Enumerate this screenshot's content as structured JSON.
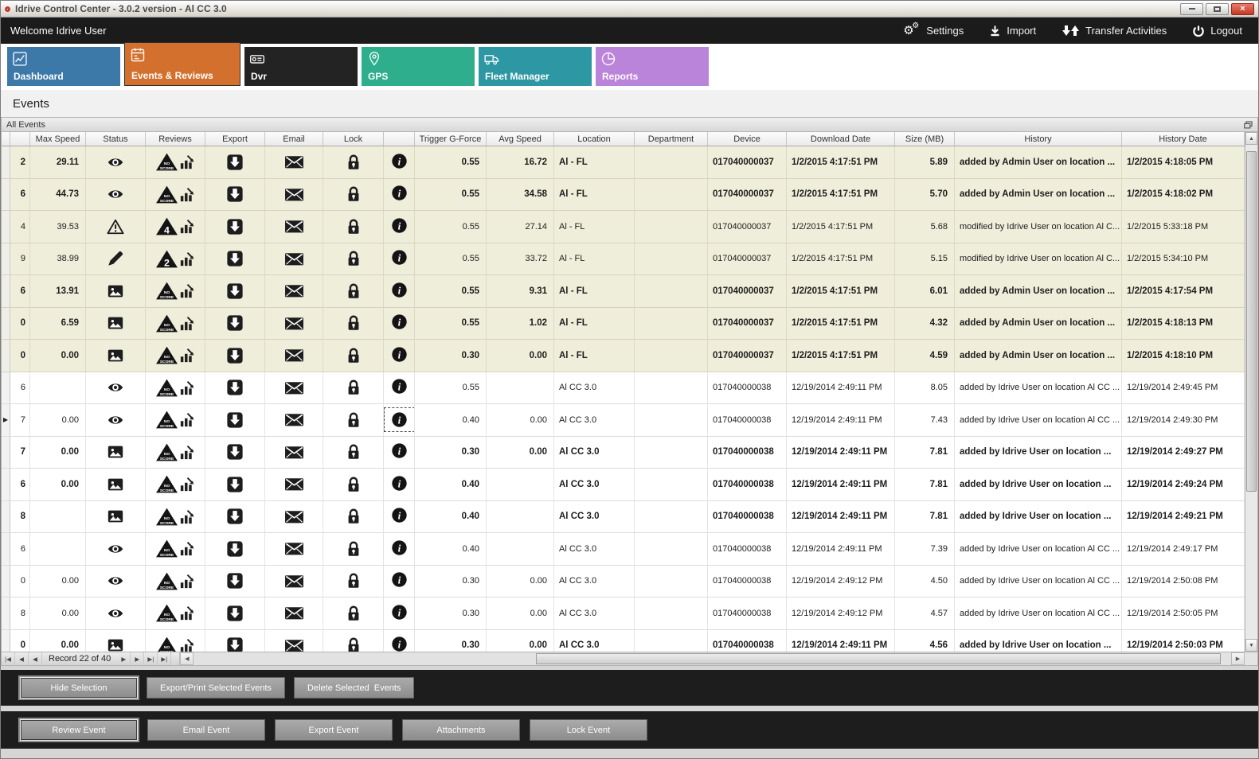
{
  "window": {
    "title": "Idrive Control Center - 3.0.2 version - Al CC 3.0",
    "welcome": "Welcome Idrive User",
    "controls": {
      "minimize": "minimize",
      "maximize": "maximize",
      "close": "close"
    }
  },
  "topbar": {
    "items": [
      {
        "label": "Settings",
        "icon": "gears-icon"
      },
      {
        "label": "Import",
        "icon": "import-arrow-icon"
      },
      {
        "label": "Transfer Activities",
        "icon": "transfer-arrows-icon"
      },
      {
        "label": "Logout",
        "icon": "power-icon"
      }
    ]
  },
  "tabs": [
    {
      "label": "Dashboard",
      "color": "#3c79a8",
      "icon": "line-chart-icon",
      "active": false
    },
    {
      "label": "Events & Reviews",
      "color": "#d4702e",
      "icon": "events-list-icon",
      "active": true
    },
    {
      "label": "Dvr",
      "color": "#232323",
      "icon": "dvr-camera-icon",
      "active": false
    },
    {
      "label": "GPS",
      "color": "#2eae8d",
      "icon": "map-pin-icon",
      "active": false
    },
    {
      "label": "Fleet Manager",
      "color": "#2d97a3",
      "icon": "truck-icon",
      "active": false
    },
    {
      "label": "Reports",
      "color": "#ba84da",
      "icon": "pie-chart-icon",
      "active": false
    }
  ],
  "page_title": "Events",
  "panel_title": "All Events",
  "grid": {
    "columns": [
      "",
      "",
      "Max Speed",
      "Status",
      "Reviews",
      "Export",
      "Email",
      "Lock",
      "",
      "Trigger G-Force",
      "Avg Speed",
      "Location",
      "Department",
      "Device",
      "Download Date",
      "Size (MB)",
      "History",
      "History Date"
    ],
    "rows": [
      {
        "edge": "2",
        "max_speed": "29.11",
        "status": "eye",
        "review": "NO SCORE",
        "trigger": "0.55",
        "avg_speed": "16.72",
        "location": "Al - FL",
        "department": "",
        "device": "017040000037",
        "download_date": "1/2/2015 4:17:51 PM",
        "size": "5.89",
        "history": "added by Admin User on location ...",
        "history_date": "1/2/2015 4:18:05 PM",
        "bold": true,
        "tint": "beige",
        "current": false,
        "focus_info": false
      },
      {
        "edge": "6",
        "max_speed": "44.73",
        "status": "eye",
        "review": "NO SCORE",
        "trigger": "0.55",
        "avg_speed": "34.58",
        "location": "Al - FL",
        "department": "",
        "device": "017040000037",
        "download_date": "1/2/2015 4:17:51 PM",
        "size": "5.70",
        "history": "added by Admin User on location ...",
        "history_date": "1/2/2015 4:18:02 PM",
        "bold": true,
        "tint": "beige",
        "current": false,
        "focus_info": false
      },
      {
        "edge": "4",
        "max_speed": "39.53",
        "status": "warning",
        "review": "4",
        "trigger": "0.55",
        "avg_speed": "27.14",
        "location": "Al - FL",
        "department": "",
        "device": "017040000037",
        "download_date": "1/2/2015 4:17:51 PM",
        "size": "5.68",
        "history": "modified by Idrive User on location Al C...",
        "history_date": "1/2/2015 5:33:18 PM",
        "bold": false,
        "tint": "beige",
        "current": false,
        "focus_info": false
      },
      {
        "edge": "9",
        "max_speed": "38.99",
        "status": "pencil",
        "review": "2",
        "trigger": "0.55",
        "avg_speed": "33.72",
        "location": "Al - FL",
        "department": "",
        "device": "017040000037",
        "download_date": "1/2/2015 4:17:51 PM",
        "size": "5.15",
        "history": "modified by Idrive User on location Al C...",
        "history_date": "1/2/2015 5:34:10 PM",
        "bold": false,
        "tint": "beige",
        "current": false,
        "focus_info": false
      },
      {
        "edge": "6",
        "max_speed": "13.91",
        "status": "image",
        "review": "NO SCORE",
        "trigger": "0.55",
        "avg_speed": "9.31",
        "location": "Al - FL",
        "department": "",
        "device": "017040000037",
        "download_date": "1/2/2015 4:17:51 PM",
        "size": "6.01",
        "history": "added by Admin User on location ...",
        "history_date": "1/2/2015 4:17:54 PM",
        "bold": true,
        "tint": "beige",
        "current": false,
        "focus_info": false
      },
      {
        "edge": "0",
        "max_speed": "6.59",
        "status": "image",
        "review": "NO SCORE",
        "trigger": "0.55",
        "avg_speed": "1.02",
        "location": "Al - FL",
        "department": "",
        "device": "017040000037",
        "download_date": "1/2/2015 4:17:51 PM",
        "size": "4.32",
        "history": "added by Admin User on location ...",
        "history_date": "1/2/2015 4:18:13 PM",
        "bold": true,
        "tint": "beige",
        "current": false,
        "focus_info": false
      },
      {
        "edge": "0",
        "max_speed": "0.00",
        "status": "image",
        "review": "NO SCORE",
        "trigger": "0.30",
        "avg_speed": "0.00",
        "location": "Al - FL",
        "department": "",
        "device": "017040000037",
        "download_date": "1/2/2015 4:17:51 PM",
        "size": "4.59",
        "history": "added by Admin User on location ...",
        "history_date": "1/2/2015 4:18:10 PM",
        "bold": true,
        "tint": "beige",
        "current": false,
        "focus_info": false
      },
      {
        "edge": "6",
        "max_speed": "",
        "status": "eye",
        "review": "NO SCORE",
        "trigger": "0.55",
        "avg_speed": "",
        "location": "Al CC 3.0",
        "department": "",
        "device": "017040000038",
        "download_date": "12/19/2014 2:49:11 PM",
        "size": "8.05",
        "history": "added by Idrive User on location Al CC ...",
        "history_date": "12/19/2014 2:49:45 PM",
        "bold": false,
        "tint": "white",
        "current": false,
        "focus_info": false
      },
      {
        "edge": "7",
        "max_speed": "0.00",
        "status": "eye",
        "review": "NO SCORE",
        "trigger": "0.40",
        "avg_speed": "0.00",
        "location": "Al CC 3.0",
        "department": "",
        "device": "017040000038",
        "download_date": "12/19/2014 2:49:11 PM",
        "size": "7.43",
        "history": "added by Idrive User on location Al CC ...",
        "history_date": "12/19/2014 2:49:30 PM",
        "bold": false,
        "tint": "white",
        "current": true,
        "focus_info": true
      },
      {
        "edge": "7",
        "max_speed": "0.00",
        "status": "image",
        "review": "NO SCORE",
        "trigger": "0.30",
        "avg_speed": "0.00",
        "location": "Al CC 3.0",
        "department": "",
        "device": "017040000038",
        "download_date": "12/19/2014 2:49:11 PM",
        "size": "7.81",
        "history": "added by Idrive User on location ...",
        "history_date": "12/19/2014 2:49:27 PM",
        "bold": true,
        "tint": "white",
        "current": false,
        "focus_info": false
      },
      {
        "edge": "6",
        "max_speed": "0.00",
        "status": "image",
        "review": "NO SCORE",
        "trigger": "0.40",
        "avg_speed": "",
        "location": "Al CC 3.0",
        "department": "",
        "device": "017040000038",
        "download_date": "12/19/2014 2:49:11 PM",
        "size": "7.81",
        "history": "added by Idrive User on location ...",
        "history_date": "12/19/2014 2:49:24 PM",
        "bold": true,
        "tint": "white",
        "current": false,
        "focus_info": false
      },
      {
        "edge": "8",
        "max_speed": "",
        "status": "image",
        "review": "NO SCORE",
        "trigger": "0.40",
        "avg_speed": "",
        "location": "Al CC 3.0",
        "department": "",
        "device": "017040000038",
        "download_date": "12/19/2014 2:49:11 PM",
        "size": "7.81",
        "history": "added by Idrive User on location ...",
        "history_date": "12/19/2014 2:49:21 PM",
        "bold": true,
        "tint": "white",
        "current": false,
        "focus_info": false
      },
      {
        "edge": "6",
        "max_speed": "",
        "status": "eye",
        "review": "NO SCORE",
        "trigger": "0.40",
        "avg_speed": "",
        "location": "Al CC 3.0",
        "department": "",
        "device": "017040000038",
        "download_date": "12/19/2014 2:49:11 PM",
        "size": "7.39",
        "history": "added by Idrive User on location Al CC ...",
        "history_date": "12/19/2014 2:49:17 PM",
        "bold": false,
        "tint": "white",
        "current": false,
        "focus_info": false
      },
      {
        "edge": "0",
        "max_speed": "0.00",
        "status": "eye",
        "review": "NO SCORE",
        "trigger": "0.30",
        "avg_speed": "0.00",
        "location": "Al CC 3.0",
        "department": "",
        "device": "017040000038",
        "download_date": "12/19/2014 2:49:12 PM",
        "size": "4.50",
        "history": "added by Idrive User on location Al CC ...",
        "history_date": "12/19/2014 2:50:08 PM",
        "bold": false,
        "tint": "white",
        "current": false,
        "focus_info": false
      },
      {
        "edge": "8",
        "max_speed": "0.00",
        "status": "eye",
        "review": "NO SCORE",
        "trigger": "0.30",
        "avg_speed": "0.00",
        "location": "Al CC 3.0",
        "department": "",
        "device": "017040000038",
        "download_date": "12/19/2014 2:49:12 PM",
        "size": "4.57",
        "history": "added by Idrive User on location Al CC ...",
        "history_date": "12/19/2014 2:50:05 PM",
        "bold": false,
        "tint": "white",
        "current": false,
        "focus_info": false
      },
      {
        "edge": "0",
        "max_speed": "0.00",
        "status": "image",
        "review": "NO SCORE",
        "trigger": "0.30",
        "avg_speed": "0.00",
        "location": "Al CC 3.0",
        "department": "",
        "device": "017040000038",
        "download_date": "12/19/2014 2:49:11 PM",
        "size": "4.56",
        "history": "added by Idrive User on location ...",
        "history_date": "12/19/2014 2:50:03 PM",
        "bold": true,
        "tint": "white",
        "current": false,
        "focus_info": false
      }
    ]
  },
  "pager": {
    "record_text": "Record 22 of 40",
    "nav_left": [
      "|◀",
      "◀",
      "◀"
    ],
    "nav_right": [
      "▶",
      "▶",
      "▶|",
      "▶|"
    ]
  },
  "action_bar1": [
    "Hide Selection",
    "Export/Print Selected Events",
    "Delete Selected  Events"
  ],
  "action_bar2": [
    "Review Event",
    "Email Event",
    "Export Event",
    "Attachments",
    "Lock Event"
  ]
}
